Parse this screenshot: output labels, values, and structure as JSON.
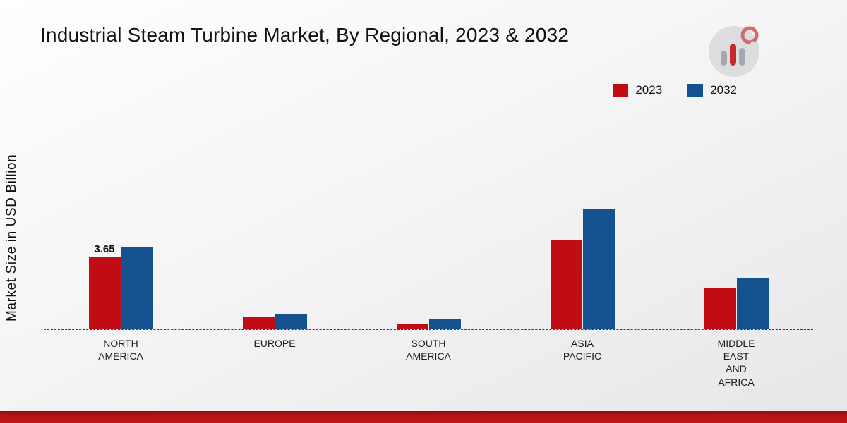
{
  "page": {
    "title": "Industrial Steam Turbine Market, By Regional, 2023 & 2032",
    "ylabel": "Market Size in USD Billion"
  },
  "legend": {
    "items": [
      {
        "label": "2023",
        "color": "#c00d13"
      },
      {
        "label": "2032",
        "color": "#16518f"
      }
    ]
  },
  "chart_data": {
    "type": "bar",
    "title": "Industrial Steam Turbine Market, By Regional, 2023 & 2032",
    "ylabel": "Market Size in USD Billion",
    "categories": [
      "NORTH AMERICA",
      "EUROPE",
      "SOUTH AMERICA",
      "ASIA PACIFIC",
      "MIDDLE EAST AND AFRICA"
    ],
    "category_lines": [
      [
        "NORTH",
        "AMERICA"
      ],
      [
        "EUROPE"
      ],
      [
        "SOUTH",
        "AMERICA"
      ],
      [
        "ASIA",
        "PACIFIC"
      ],
      [
        "MIDDLE",
        "EAST",
        "AND",
        "AFRICA"
      ]
    ],
    "series": [
      {
        "name": "2023",
        "color": "#c00d13",
        "values": [
          3.65,
          0.6,
          0.3,
          4.5,
          2.1
        ],
        "value_labels": [
          "3.65",
          "",
          "",
          "",
          ""
        ]
      },
      {
        "name": "2032",
        "color": "#16518f",
        "values": [
          4.2,
          0.8,
          0.5,
          6.1,
          2.6
        ],
        "value_labels": [
          "",
          "",
          "",
          "",
          ""
        ]
      }
    ],
    "ylim": [
      0,
      10.8
    ],
    "grid": false,
    "legend_position": "top-right",
    "baseline_style": "dashed"
  },
  "colors": {
    "accent_red": "#c00d13",
    "accent_blue": "#16518f",
    "footer_bar": "#b31217"
  }
}
